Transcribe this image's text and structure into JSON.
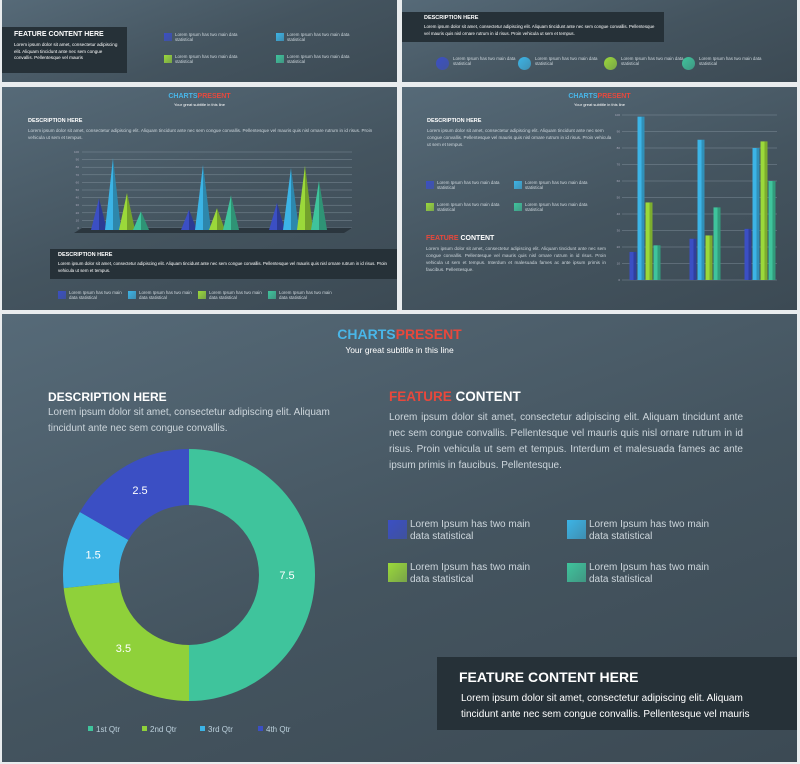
{
  "slides": [
    {
      "title": "FEATURE CONTENT HERE",
      "body": "Lorem ipsum dolor sit amet, consectetur adipiscing elit. Aliquam tincidunt ante nec sem congue convallis. Pellentesque vel mauris",
      "legend": [
        {
          "text": "Lorem Ipsum has two main data statistical",
          "color": "#3b4fc4"
        },
        {
          "text": "Lorem Ipsum has two main data statistical",
          "color": "#3cb4e6"
        },
        {
          "text": "Lorem Ipsum has two main data statistical",
          "color": "#9bd93a"
        },
        {
          "text": "Lorem Ipsum has two main data statistical",
          "color": "#3fc49c"
        }
      ]
    },
    {
      "title": "DESCRIPTION HERE",
      "body": "Lorem ipsum dolor sit amet, consectetur adipiscing elit. Aliquam tincidunt ante nec sem congue convallis. Pellentesque vel mauris quis nisl ornare rutrum in id risus. Proin vehicula ut sem et tempus.",
      "legend": [
        {
          "text": "Lorem Ipsum has two main data statistical",
          "color": "#3b4fc4"
        },
        {
          "text": "Lorem Ipsum has two main data statistical",
          "color": "#3cb4e6"
        },
        {
          "text": "Lorem Ipsum has two main data statistical",
          "color": "#9bd93a"
        },
        {
          "text": "Lorem Ipsum has two main data statistical",
          "color": "#3fc49c"
        }
      ]
    },
    {
      "heading": "CHARTS",
      "heading_accent": "PRESENT",
      "subtitle": "Your great subtitle in this line",
      "desc_title": "DESCRIPTION HERE",
      "desc_body": "Lorem ipsum dolor sit amet, consectetur adipiscing elit. Aliquam tincidunt ante nec sem congue convallis. Pellentesque vel mauris quis nisl ornare rutrum in id risus. Proin vehicula ut sem et tempus.",
      "box_title": "DESCRIPTION HERE",
      "box_body": "Lorem ipsum dolor sit amet, consectetur adipiscing elit. Aliquam tincidunt ante nec sem congue convallis. Pellentesque vel mauris quis nisl ornare rutrum in id risus. Proin vehicula ut sem et tempus."
    },
    {
      "heading": "CHARTS",
      "heading_accent": "PRESENT",
      "subtitle": "Your great subtitle in this line",
      "desc_title": "DESCRIPTION HERE",
      "desc_body": "Lorem ipsum dolor sit amet, consectetur adipiscing elit. Aliquam tincidunt ante nec sem congue convallis. Pellentesque vel mauris quis nisl ornare rutrum in id risus. Proin vehicula ut sem et tempus.",
      "feature": "FEATURE",
      "feature_rest": "CONTENT",
      "feature_body": "Lorem ipsum dolor sit amet, consectetur adipiscing elit. Aliquam tincidunt ante nec sem congue convallis. Pellentesque vel mauris quis nisl ornare rutrum in id risus. Proin vehicula ut sem et tempus. Interdum et malesuada fames ac ante ipsum primis in faucibus. Pellentesque."
    },
    {
      "heading": "CHARTS",
      "heading_accent": "PRESENT",
      "subtitle": "Your great subtitle in this line",
      "desc_title": "DESCRIPTION HERE",
      "desc_body": "Lorem ipsum dolor sit amet, consectetur adipiscing elit. Aliquam tincidunt ante nec sem congue convallis.",
      "feature": "FEATURE",
      "feature_rest": "CONTENT",
      "feature_body": "Lorem ipsum dolor sit amet, consectetur adipiscing elit. Aliquam tincidunt ante nec sem congue convallis. Pellentesque vel mauris quis nisl ornare rutrum in id risus. Proin vehicula ut sem et tempus. Interdum et malesuada fames ac ante ipsum primis in faucibus. Pellentesque.",
      "legend": [
        {
          "text": "Lorem Ipsum has two main data statistical",
          "color": "#3b4fc4"
        },
        {
          "text": "Lorem Ipsum has two main data statistical",
          "color": "#3cb4e6"
        },
        {
          "text": "Lorem Ipsum has two main data statistical",
          "color": "#9bd93a"
        },
        {
          "text": "Lorem Ipsum has two main data statistical",
          "color": "#3fc49c"
        }
      ],
      "box_title": "FEATURE CONTENT  HERE",
      "box_body": "Lorem ipsum dolor sit amet, consectetur adipiscing elit. Aliquam tincidunt ante nec sem congue convallis. Pellentesque vel mauris"
    }
  ],
  "chart_data": [
    {
      "type": "pyramid",
      "categories": [
        null,
        null,
        null
      ],
      "ylim": [
        0,
        100
      ],
      "yticks": [
        0,
        10,
        20,
        30,
        40,
        50,
        60,
        70,
        80,
        90,
        100
      ],
      "grid": true,
      "series": [
        {
          "name": "Lorem Ipsum has two main data statistical",
          "color": "#3b4fc4",
          "values": [
            39,
            24,
            33
          ]
        },
        {
          "name": "Lorem Ipsum has two main data statistical",
          "color": "#3cb4e6",
          "values": [
            92,
            83,
            79
          ]
        },
        {
          "name": "Lorem Ipsum has two main data statistical",
          "color": "#9bd93a",
          "values": [
            46,
            26,
            82
          ]
        },
        {
          "name": "Lorem Ipsum has two main data statistical",
          "color": "#3fc49c",
          "values": [
            22,
            43,
            62
          ]
        }
      ]
    },
    {
      "type": "bar",
      "categories": [
        null,
        null,
        null
      ],
      "ylim": [
        0,
        100
      ],
      "yticks": [
        0,
        10,
        20,
        30,
        40,
        50,
        60,
        70,
        80,
        90,
        100
      ],
      "grid": true,
      "series": [
        {
          "name": "Lorem Ipsum has two main data statistical",
          "color": "#3b4fc4",
          "values": [
            17,
            25,
            31
          ]
        },
        {
          "name": "Lorem Ipsum has two main data statistical",
          "color": "#3cb4e6",
          "values": [
            99,
            85,
            80
          ]
        },
        {
          "name": "Lorem Ipsum has two main data statistical",
          "color": "#9bd93a",
          "values": [
            47,
            27,
            84
          ]
        },
        {
          "name": "Lorem Ipsum has two main data statistical",
          "color": "#3fc49c",
          "values": [
            21,
            44,
            60
          ]
        }
      ]
    },
    {
      "type": "donut",
      "categories": [
        "1st Qtr",
        "2nd Qtr",
        "3rd Qtr",
        "4th Qtr"
      ],
      "values": [
        7.5,
        3.5,
        1.5,
        2.5
      ],
      "colors": [
        "#3fc49c",
        "#8fd13a",
        "#3cb4e6",
        "#3b4fc4"
      ]
    }
  ]
}
